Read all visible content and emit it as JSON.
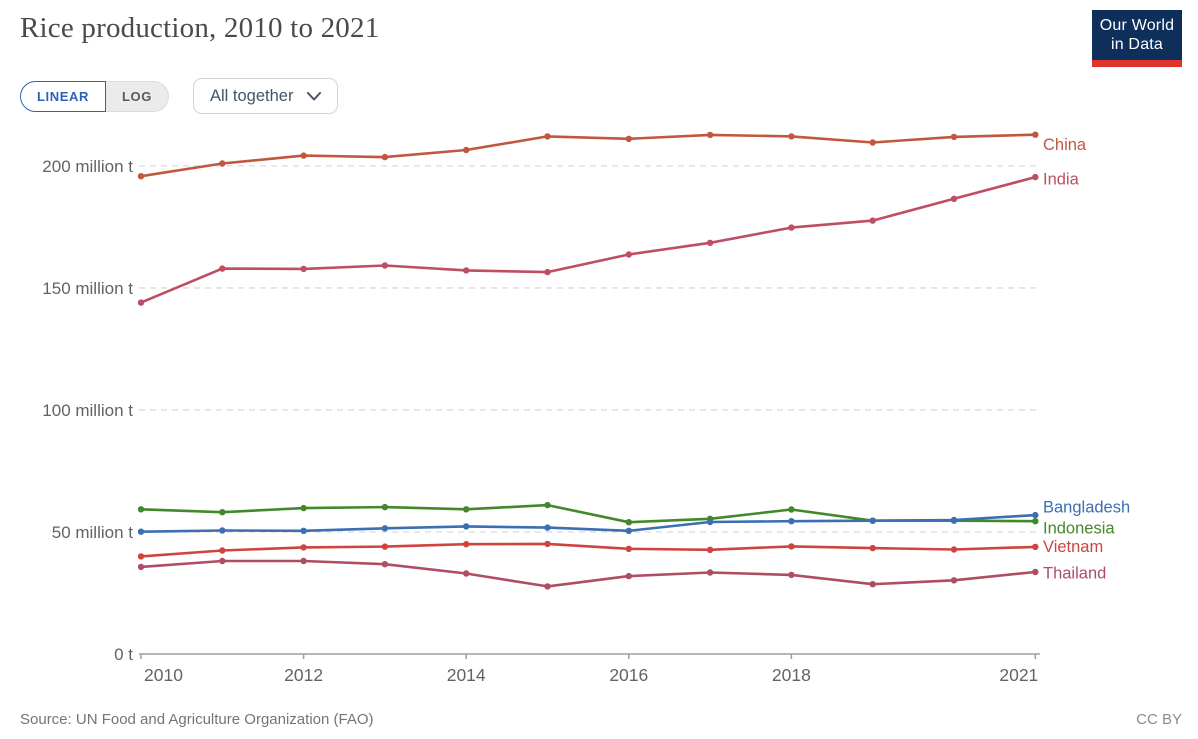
{
  "header": {
    "title": "Rice production, 2010 to 2021",
    "logo": {
      "line1": "Our World",
      "line2": "in Data"
    }
  },
  "controls": {
    "linear_label": "LINEAR",
    "log_label": "LOG",
    "entity_selector": "All together"
  },
  "footer": {
    "source": "Source: UN Food and Agriculture Organization (FAO)",
    "license": "CC BY"
  },
  "colors": {
    "accent_blue": "#2d62b5",
    "logo_navy": "#0e2f59",
    "logo_red": "#dd352b",
    "gridline": "#dbdbdb",
    "axis": "#9e9e9e",
    "tick_text": "#636363"
  },
  "chart_data": {
    "type": "line",
    "title": "Rice production, 2010 to 2021",
    "unit": "million t",
    "grid": "horizontal-dashed",
    "legend_position": "right-of-line-ends",
    "ylim": [
      0,
      220
    ],
    "x": [
      2010,
      2011,
      2012,
      2013,
      2014,
      2015,
      2016,
      2017,
      2018,
      2019,
      2020,
      2021
    ],
    "x_ticks": [
      2010,
      2012,
      2014,
      2016,
      2018,
      2021
    ],
    "y_ticks": [
      {
        "value": 0,
        "label": "0 t"
      },
      {
        "value": 50,
        "label": "50 million t"
      },
      {
        "value": 100,
        "label": "100 million t"
      },
      {
        "value": 150,
        "label": "150 million t"
      },
      {
        "value": 200,
        "label": "200 million t"
      }
    ],
    "series": [
      {
        "name": "China",
        "color": "#c1573f",
        "values": [
          195.8,
          201.0,
          204.2,
          203.6,
          206.5,
          212.1,
          211.1,
          212.7,
          212.1,
          209.6,
          211.9,
          212.8
        ]
      },
      {
        "name": "India",
        "color": "#be4e63",
        "values": [
          144.0,
          157.9,
          157.8,
          159.2,
          157.2,
          156.5,
          163.7,
          168.5,
          174.7,
          177.6,
          186.5,
          195.4
        ]
      },
      {
        "name": "Bangladesh",
        "color": "#3b6fb2",
        "values": [
          50.1,
          50.6,
          50.5,
          51.5,
          52.3,
          51.8,
          50.5,
          54.1,
          54.4,
          54.6,
          54.9,
          56.9
        ]
      },
      {
        "name": "Indonesia",
        "color": "#43882b",
        "values": [
          59.3,
          58.1,
          59.8,
          60.2,
          59.3,
          61.0,
          54.0,
          55.4,
          59.2,
          54.6,
          54.6,
          54.4
        ]
      },
      {
        "name": "Vietnam",
        "color": "#ce4540",
        "values": [
          40.0,
          42.4,
          43.7,
          44.0,
          45.0,
          45.1,
          43.1,
          42.7,
          44.1,
          43.4,
          42.8,
          43.9
        ]
      },
      {
        "name": "Thailand",
        "color": "#af4d63",
        "values": [
          35.7,
          38.1,
          38.1,
          36.8,
          33.0,
          27.7,
          31.9,
          33.4,
          32.4,
          28.6,
          30.2,
          33.6
        ]
      }
    ]
  }
}
